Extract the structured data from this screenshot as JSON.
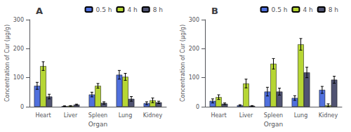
{
  "chart_data": [
    {
      "type": "bar",
      "title": "A",
      "xlabel": "Organ",
      "ylabel": "Concentration of Cur (μg/g)",
      "categories": [
        "Heart",
        "Liver",
        "Spleen",
        "Lung",
        "Kidney"
      ],
      "series": [
        {
          "name": "0.5 h",
          "values": [
            72,
            2,
            42,
            110,
            12
          ],
          "errors": [
            12,
            1,
            8,
            15,
            5
          ]
        },
        {
          "name": "4 h",
          "values": [
            140,
            3,
            72,
            103,
            22
          ],
          "errors": [
            15,
            1,
            8,
            12,
            8
          ]
        },
        {
          "name": "8 h",
          "values": [
            35,
            7,
            13,
            27,
            15
          ],
          "errors": [
            8,
            2,
            4,
            8,
            4
          ]
        }
      ],
      "ylim": [
        0,
        300
      ],
      "yticks": [
        0,
        100,
        200,
        300
      ],
      "grid": false,
      "legend": "upper right"
    },
    {
      "type": "bar",
      "title": "B",
      "xlabel": "Organ",
      "ylabel": "Concentration of Cur (μg/g)",
      "categories": [
        "Heart",
        "Liver",
        "Spleen",
        "Lung",
        "Kidney"
      ],
      "series": [
        {
          "name": "0.5 h",
          "values": [
            20,
            5,
            52,
            30,
            58
          ],
          "errors": [
            7,
            2,
            15,
            8,
            12
          ]
        },
        {
          "name": "4 h",
          "values": [
            33,
            80,
            148,
            215,
            5
          ],
          "errors": [
            8,
            15,
            18,
            20,
            5
          ]
        },
        {
          "name": "8 h",
          "values": [
            10,
            3,
            52,
            118,
            93
          ],
          "errors": [
            3,
            1,
            12,
            18,
            12
          ]
        }
      ],
      "ylim": [
        0,
        300
      ],
      "yticks": [
        0,
        100,
        200,
        300
      ],
      "grid": false,
      "legend": "upper right"
    }
  ]
}
